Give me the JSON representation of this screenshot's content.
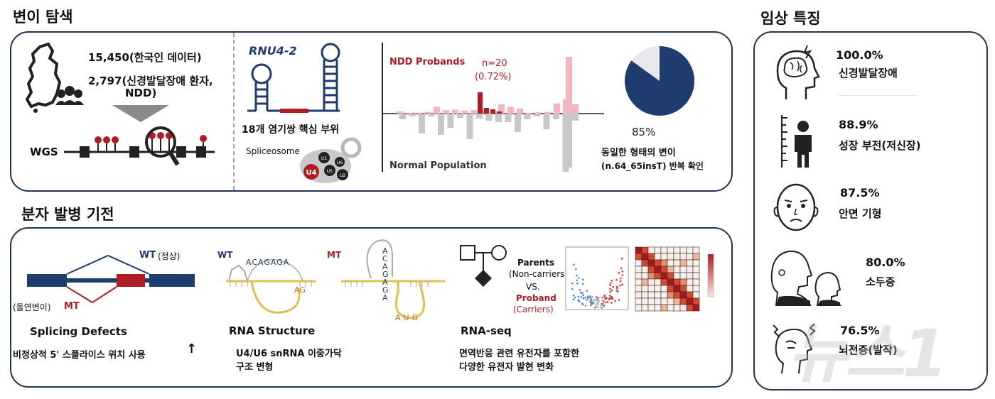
{
  "sections": {
    "discovery_title": "변이 탐색",
    "mechanism_title": "분자 발병 기전",
    "clinical_title": "임상 특징"
  },
  "discovery": {
    "korean_data": "15,450(한국인 데이터)",
    "ndd_patients_line1": "2,797(신경발달장애 환자,",
    "ndd_patients_line2": "NDD)",
    "wgs_label": "WGS",
    "gene_label": "RNU4-2",
    "core_site": "18개 염기쌍 핵심 부위",
    "spliceosome_label": "Spliceosome",
    "spliceosome_subunits": [
      "U4",
      "U1",
      "U5",
      "U6",
      "U2"
    ],
    "ndd_probands": "NDD Probands",
    "n_count": "n=20",
    "n_percent": "(0.72%)",
    "normal_population": "Normal Population",
    "pie_percent": "85%",
    "same_variant_line1": "동일한 형태의 변이",
    "same_variant_line2": "(n.64_65insT) 반복 확인"
  },
  "mechanism": {
    "wt_label": "WT",
    "wt_note": "(정상)",
    "mt_note": "(돌연변이)",
    "mt_label": "MT",
    "splicing_title": "Splicing Defects",
    "splicing_desc": "비정상적 5' 스플라이스 위치 사용",
    "splicing_arrow": "↑",
    "rna_wt_label": "WT",
    "rna_wt_seq": "ACAGAGA",
    "rna_ag_wt": "AG",
    "rna_mt_label": "MT",
    "rna_mt_seq": "ACAGAGA",
    "rna_mt_loop": "AUG",
    "rna_structure_title": "RNA Structure",
    "rna_structure_desc_line1": "U4/U6 snRNA 이중가닥",
    "rna_structure_desc_line2": "구조 변형",
    "parents_label": "Parents",
    "parents_note": "(Non-carriers)",
    "vs_label": "VS.",
    "proband_label": "Proband",
    "proband_note": "(Carriers)",
    "rnaseq_title": "RNA-seq",
    "rnaseq_desc_line1": "면역반응 관련 유전자를 포함한",
    "rnaseq_desc_line2": "다양한 유전자 발현 변화"
  },
  "clinical": [
    {
      "value": "100.0%",
      "label": "신경발달장애",
      "icon": "brain-head-icon"
    },
    {
      "value": "88.9%",
      "label": "성장 부전(저신장)",
      "icon": "short-stature-icon"
    },
    {
      "value": "87.5%",
      "label": "안면 기형",
      "icon": "face-icon"
    },
    {
      "value": "80.0%",
      "label": "소두증",
      "icon": "microcephaly-icon"
    },
    {
      "value": "76.5%",
      "label": "뇌전증(발작)",
      "icon": "seizure-icon"
    }
  ],
  "watermark": "뉴스1",
  "chart_data": [
    {
      "type": "bar",
      "title": "",
      "series": [
        {
          "name": "NDD Probands",
          "values": [
            5,
            2,
            2,
            4,
            16,
            8,
            9,
            7,
            8,
            12,
            3,
            22,
            16,
            12,
            2,
            3,
            4,
            24,
            34,
            22
          ]
        },
        {
          "name": "Normal Population",
          "values": [
            -8,
            -4,
            -28,
            -4,
            -30,
            -20,
            -6,
            -36,
            -7,
            -10,
            -12,
            -12,
            -26,
            -8,
            -4,
            -22,
            -8,
            -82,
            -10
          ]
        }
      ],
      "highlight_values": [
        30,
        8,
        6,
        3
      ]
    },
    {
      "type": "pie",
      "slices": [
        {
          "label": "85%",
          "value": 85
        },
        {
          "label": "",
          "value": 15
        }
      ],
      "colors": [
        "#1f3c6e",
        "#e8e8ec"
      ]
    }
  ],
  "colors": {
    "panel_border": "#1f3550",
    "navy": "#1f3c6e",
    "red": "#b01c24",
    "pink": "#f4b5bf",
    "gray": "#c8c8c8"
  }
}
